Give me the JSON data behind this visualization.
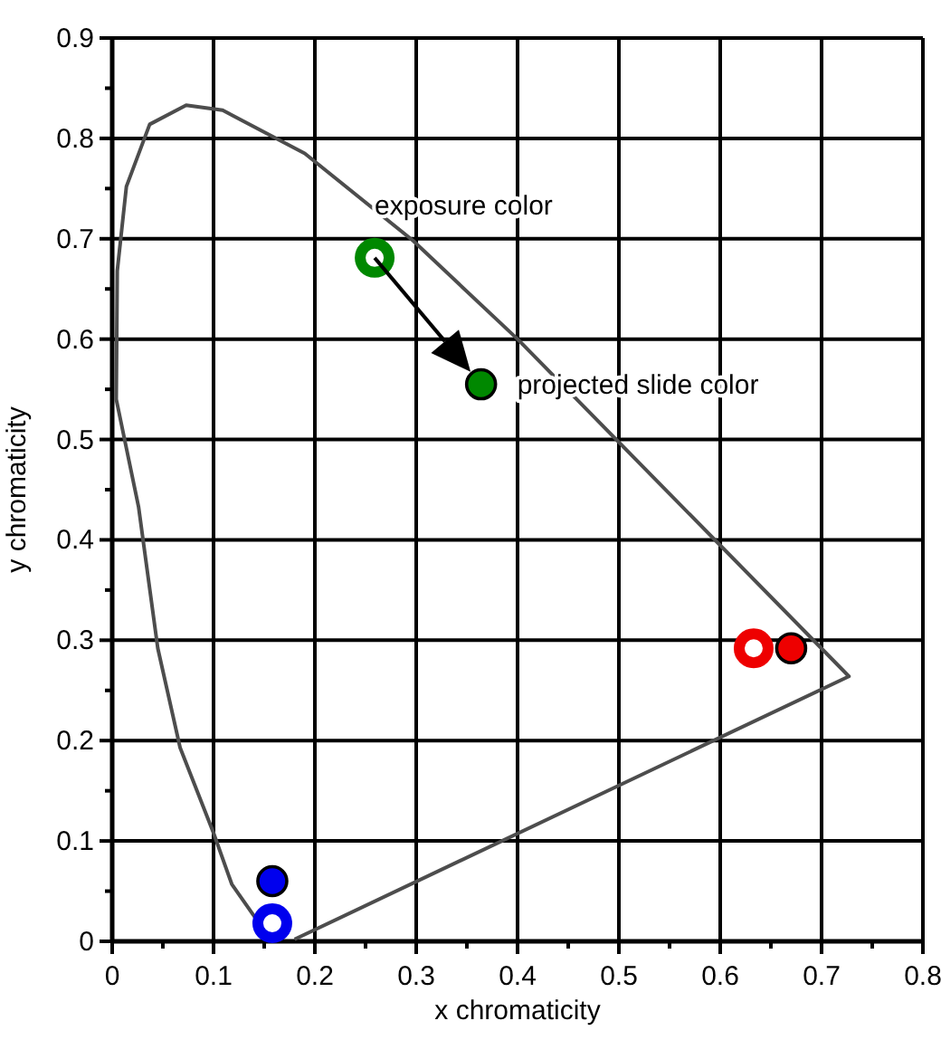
{
  "chart_data": {
    "type": "line",
    "xlabel": "x chromaticity",
    "ylabel": "y chromaticity",
    "xlim": [
      0,
      0.8
    ],
    "ylim": [
      0,
      0.9
    ],
    "xticks": [
      0,
      {
        "value": 0.05,
        "label": null
      },
      0.1,
      {
        "value": 0.15,
        "label": null
      },
      0.2,
      {
        "value": 0.25,
        "label": null
      },
      0.3,
      {
        "value": 0.35,
        "label": null
      },
      0.4,
      {
        "value": 0.45,
        "label": null
      },
      0.5,
      {
        "value": 0.55,
        "label": null
      },
      0.6,
      {
        "value": 0.65,
        "label": null
      },
      0.7,
      {
        "value": 0.75,
        "label": null
      },
      0.8
    ],
    "yticks": [
      0,
      {
        "value": 0.05,
        "label": null
      },
      0.1,
      {
        "value": 0.15,
        "label": null
      },
      0.2,
      {
        "value": 0.25,
        "label": null
      },
      0.3,
      {
        "value": 0.35,
        "label": null
      },
      0.4,
      {
        "value": 0.45,
        "label": null
      },
      0.5,
      {
        "value": 0.55,
        "label": null
      },
      0.6,
      {
        "value": 0.65,
        "label": null
      },
      0.7,
      {
        "value": 0.75,
        "label": null
      },
      0.8,
      {
        "value": 0.85,
        "label": null
      },
      0.9
    ],
    "grid": true,
    "marker": "circle",
    "series": [
      {
        "color": "#4d4d4d",
        "marker": "none",
        "x": [
          0.172,
          0.145,
          0.118,
          0.1,
          0.067,
          0.045,
          0.026,
          0.004,
          0.005,
          0.014,
          0.037,
          0.073,
          0.109,
          0.19,
          0.297,
          0.4,
          0.727,
          0.18
        ],
        "values": [
          0.007,
          0.018,
          0.057,
          0.108,
          0.193,
          0.292,
          0.433,
          0.54,
          0.668,
          0.752,
          0.814,
          0.833,
          0.828,
          0.785,
          0.698,
          0.6,
          0.264,
          0.002
        ]
      },
      {
        "type": "scatter",
        "colors": [
          "#0000ee",
          "#008800",
          "#ee0000"
        ],
        "x": [
          0.158,
          0.259,
          0.633
        ],
        "values": [
          0.018,
          0.681,
          0.292
        ]
      },
      {
        "type": "scatter",
        "colors": [
          "#0000ee",
          "#008800",
          "#ee0000"
        ],
        "x": [
          0.158,
          0.364,
          0.67
        ],
        "values": [
          0.06,
          0.555,
          0.292
        ]
      }
    ],
    "annotations": [
      {
        "text": "exposure  color",
        "x": 0.259,
        "y": 0.681
      },
      {
        "text": "projected  slide  color",
        "x": 0.364,
        "y": 0.555
      }
    ]
  }
}
